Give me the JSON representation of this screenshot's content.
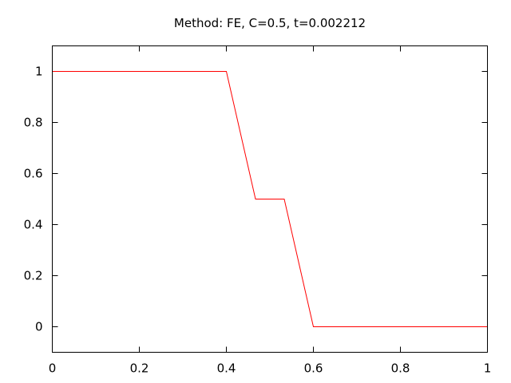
{
  "chart_data": {
    "type": "line",
    "title": "Method: FE, C=0.5, t=0.002212",
    "xlabel": "",
    "ylabel": "",
    "xlim": [
      0,
      1
    ],
    "ylim": [
      -0.1,
      1.1
    ],
    "grid": false,
    "x_ticks": [
      0,
      0.2,
      0.4,
      0.6,
      0.8,
      1
    ],
    "x_tick_labels": [
      "0",
      "0.2",
      "0.4",
      "0.6",
      "0.8",
      "1"
    ],
    "y_ticks": [
      0,
      0.2,
      0.4,
      0.6,
      0.8,
      1
    ],
    "y_tick_labels": [
      "0",
      "0.2",
      "0.4",
      "0.6",
      "0.8",
      "1"
    ],
    "series": [
      {
        "color": "#ff0000",
        "x": [
          0,
          0.4,
          0.467,
          0.533,
          0.6,
          1
        ],
        "y": [
          1,
          1,
          0.5,
          0.5,
          0,
          0
        ]
      }
    ]
  }
}
